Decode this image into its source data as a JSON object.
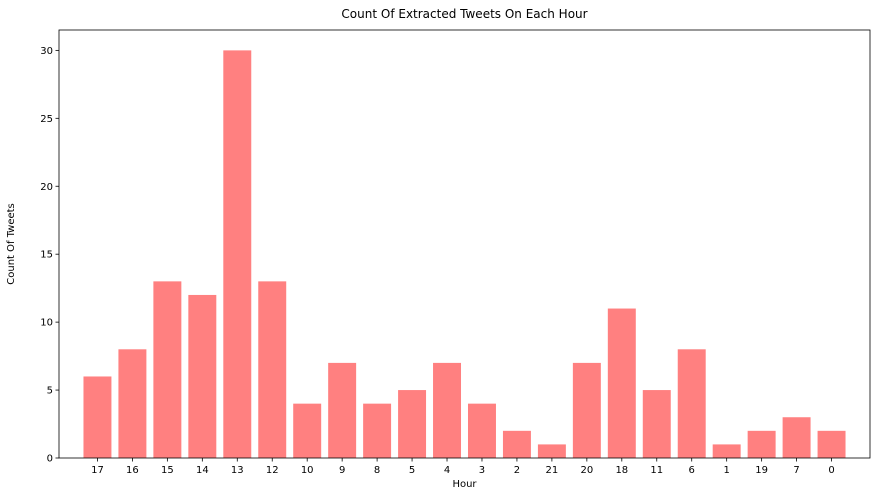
{
  "chart_data": {
    "type": "bar",
    "title": "Count Of Extracted Tweets On Each Hour",
    "xlabel": "Hour",
    "ylabel": "Count Of Tweets",
    "categories": [
      "17",
      "16",
      "15",
      "14",
      "13",
      "12",
      "10",
      "9",
      "8",
      "5",
      "4",
      "3",
      "2",
      "21",
      "20",
      "18",
      "11",
      "6",
      "1",
      "19",
      "7",
      "0"
    ],
    "values": [
      6,
      8,
      13,
      12,
      30,
      13,
      4,
      7,
      4,
      5,
      7,
      4,
      2,
      1,
      7,
      11,
      5,
      8,
      1,
      2,
      3,
      2
    ],
    "ylim": [
      0,
      31.5
    ],
    "yticks": [
      0,
      5,
      10,
      15,
      20,
      25,
      30
    ],
    "bar_color": "#ff8080",
    "grid": false,
    "legend": false
  }
}
